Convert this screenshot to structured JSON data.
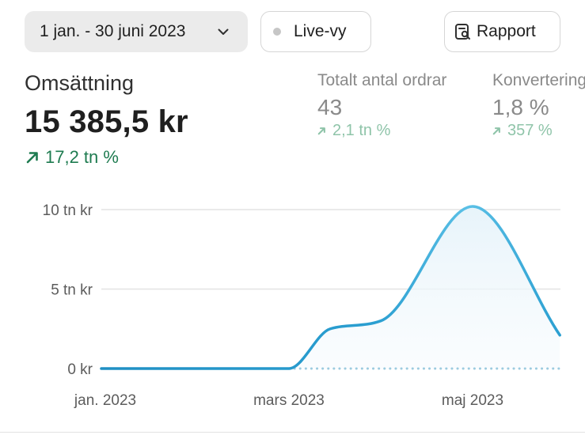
{
  "toolbar": {
    "date_range": "1 jan. - 30 juni 2023",
    "live_label": "Live-vy",
    "report_label": "Rapport"
  },
  "metrics": {
    "primary": {
      "title": "Omsättning",
      "value": "15 385,5 kr",
      "change": "17,2 tn %"
    },
    "orders": {
      "title": "Totalt antal ordrar",
      "value": "43",
      "change": "2,1 tn %"
    },
    "conversion": {
      "title": "Konvertering",
      "value": "1,8 %",
      "change": "357 %"
    }
  },
  "colors": {
    "accent": "#2b9fd1",
    "positive": "#1e7b50",
    "muted_positive": "#8fc4a9"
  },
  "chart_data": {
    "type": "area",
    "y_ticks": [
      "0 kr",
      "5 tn kr",
      "10 tn kr"
    ],
    "y_tick_values": [
      0,
      5000,
      10000
    ],
    "x_ticks": [
      "jan. 2023",
      "mars 2023",
      "maj 2023"
    ],
    "x_tick_values": [
      0,
      2,
      4
    ],
    "x": [
      0,
      1,
      2,
      2.45,
      3,
      4,
      4.95
    ],
    "series": [
      {
        "values": [
          0,
          0,
          0,
          2500,
          3000,
          10200,
          2100
        ]
      }
    ],
    "comparison_baseline": 0,
    "ylim": [
      0,
      10000
    ],
    "grid": true
  }
}
